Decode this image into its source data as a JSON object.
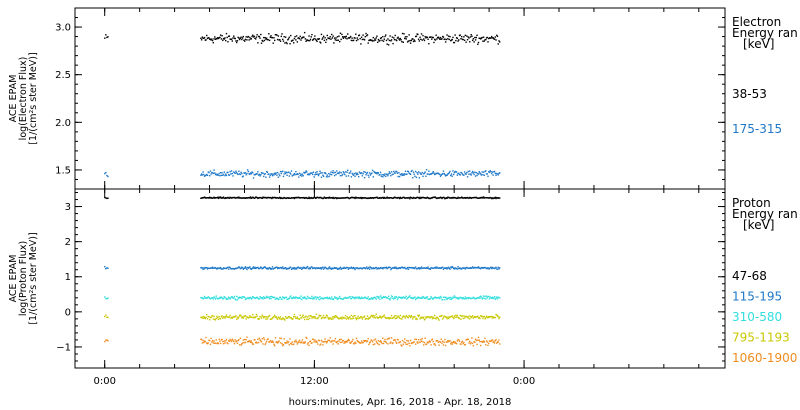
{
  "chart_data": [
    {
      "type": "scatter",
      "ylabel_lines": [
        "ACE EPAM",
        "log(Electron Flux)",
        "[1/(cm²s ster MeV)]"
      ],
      "ylim": [
        1.3,
        3.2
      ],
      "yticks": [
        1.5,
        2.0,
        2.5,
        3.0
      ],
      "ytick_labels": [
        "1.5",
        "2.0",
        "2.5",
        "3.0"
      ],
      "legend_title_lines": [
        "Electron",
        "Energy ran",
        "[keV]"
      ],
      "series": [
        {
          "name": "38-53",
          "color": "#000000",
          "mean": 2.88,
          "spread": 0.07,
          "segments": [
            [
              0.0,
              0.18
            ],
            [
              5.5,
              22.6
            ]
          ]
        },
        {
          "name": "175-315",
          "color": "#1e78c8",
          "mean": 1.46,
          "spread": 0.05,
          "segments": [
            [
              0.0,
              0.18
            ],
            [
              5.5,
              22.6
            ]
          ]
        }
      ]
    },
    {
      "type": "scatter",
      "ylabel_lines": [
        "ACE EPAM",
        "log(Proton Flux)",
        "[1/(cm²s ster MeV)]"
      ],
      "ylim": [
        -1.6,
        3.5
      ],
      "yticks": [
        -1,
        0,
        1,
        2,
        3
      ],
      "ytick_labels": [
        "−1",
        "0",
        "1",
        "2",
        "3"
      ],
      "legend_title_lines": [
        "Proton",
        "Energy ran",
        "[keV]"
      ],
      "series": [
        {
          "name": "47-68",
          "color": "#000000",
          "mean": 3.25,
          "spread": 0.03,
          "segments": [
            [
              0.0,
              0.18
            ],
            [
              5.5,
              22.6
            ]
          ]
        },
        {
          "name": "115-195",
          "color": "#1e78c8",
          "mean": 1.25,
          "spread": 0.05,
          "segments": [
            [
              0.0,
              0.18
            ],
            [
              5.5,
              22.6
            ]
          ]
        },
        {
          "name": "310-580",
          "color": "#33dede",
          "mean": 0.4,
          "spread": 0.07,
          "segments": [
            [
              0.0,
              0.18
            ],
            [
              5.5,
              22.6
            ]
          ]
        },
        {
          "name": "795-1193",
          "color": "#c8c800",
          "mean": -0.15,
          "spread": 0.1,
          "segments": [
            [
              0.0,
              0.18
            ],
            [
              5.5,
              22.6
            ]
          ]
        },
        {
          "name": "1060-1900",
          "color": "#f08c1e",
          "mean": -0.85,
          "spread": 0.15,
          "segments": [
            [
              0.0,
              0.18
            ],
            [
              5.5,
              22.6
            ]
          ]
        }
      ]
    }
  ],
  "x_axis": {
    "xlim_hours": [
      -1.7,
      35.5
    ],
    "tick_hours": [
      0,
      12,
      24
    ],
    "tick_labels": [
      "0:00",
      "12:00",
      "0:00"
    ],
    "minor_step_hours": 2,
    "xlabel": "hours:minutes, Apr. 16, 2018 - Apr. 18, 2018"
  }
}
